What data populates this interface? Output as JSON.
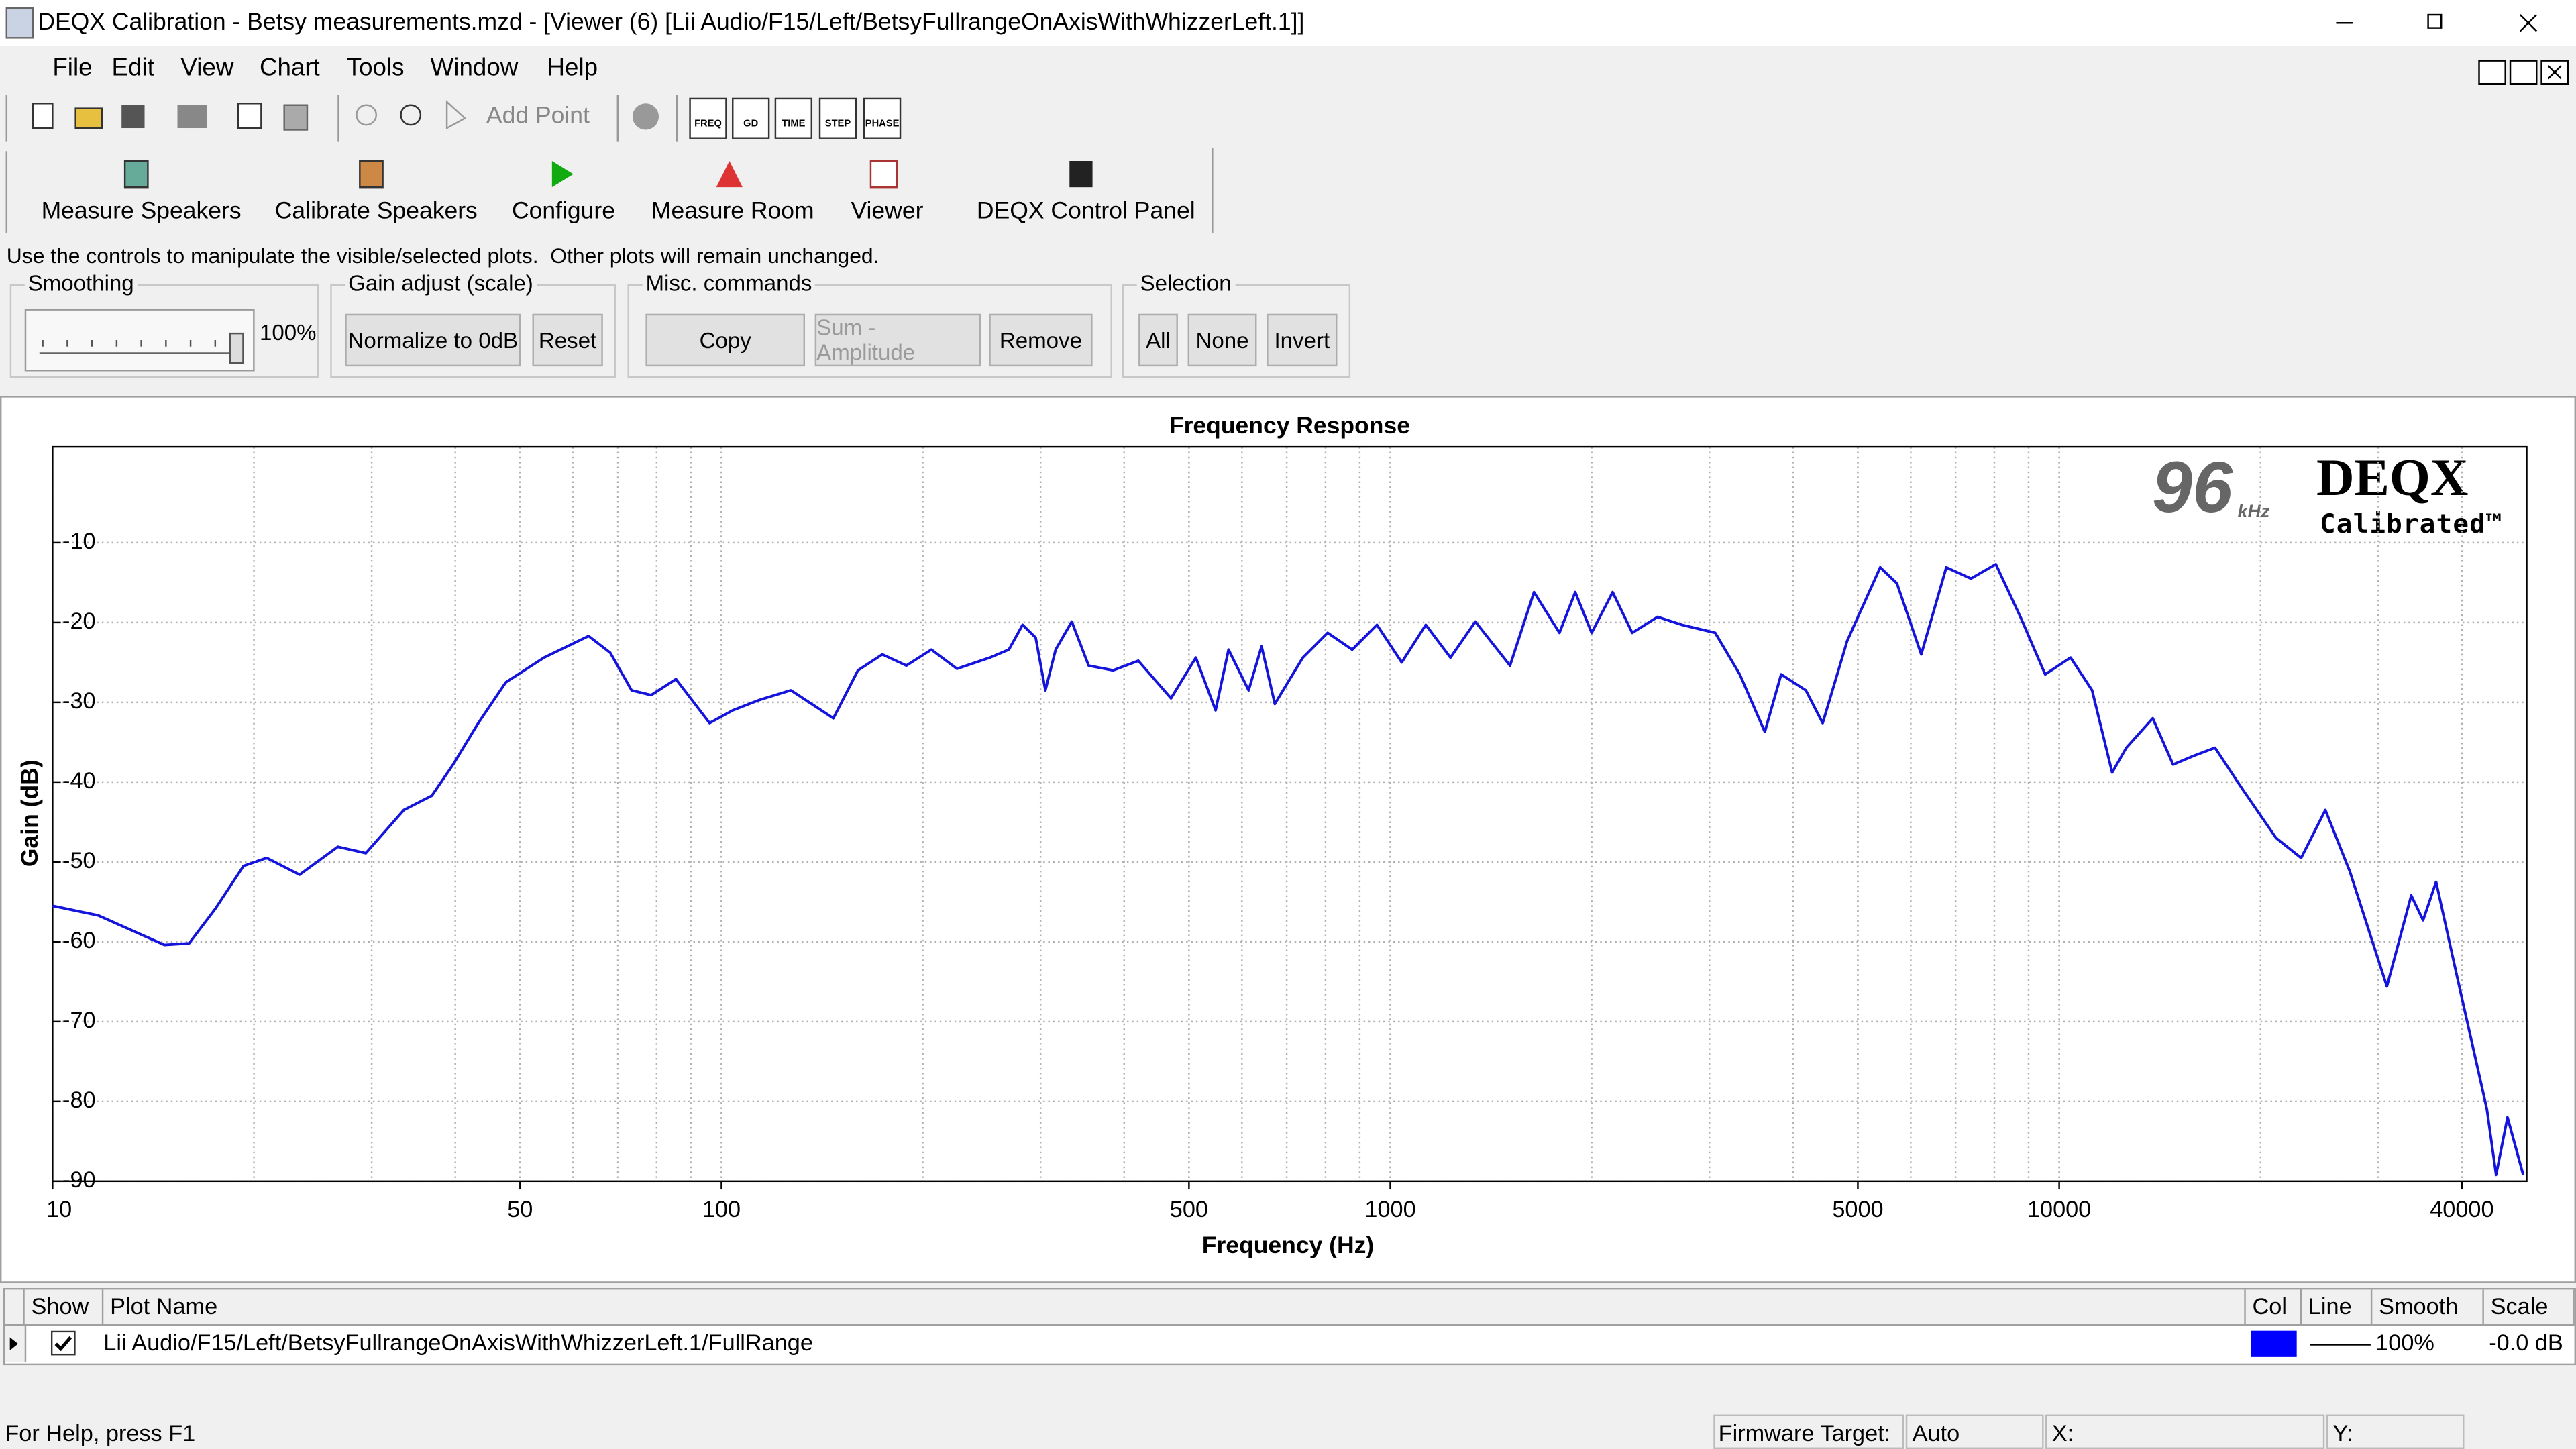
{
  "window": {
    "title": "DEQX Calibration - Betsy measurements.mzd - [Viewer (6) [Lii Audio/F15/Left/BetsyFullrangeOnAxisWithWhizzerLeft.1]]"
  },
  "menu": [
    "File",
    "Edit",
    "View",
    "Chart",
    "Tools",
    "Window",
    "Help"
  ],
  "toolbar": {
    "add_point": "Add Point",
    "view_buttons": [
      "FREQ",
      "GD",
      "TIME",
      "STEP",
      "PHASE"
    ]
  },
  "main_buttons": [
    "Measure Speakers",
    "Calibrate Speakers",
    "Configure",
    "Measure Room",
    "Viewer",
    "DEQX Control Panel"
  ],
  "hint": "Use the controls to manipulate the visible/selected plots.  Other plots will remain unchanged.",
  "controls": {
    "smoothing": {
      "label": "Smoothing",
      "value": "100%"
    },
    "gain": {
      "label": "Gain adjust (scale)",
      "buttons": [
        "Normalize to 0dB",
        "Reset"
      ]
    },
    "misc": {
      "label": "Misc. commands",
      "buttons": [
        "Copy",
        "Sum - Amplitude",
        "Remove"
      ]
    },
    "selection": {
      "label": "Selection",
      "buttons": [
        "All",
        "None",
        "Invert"
      ]
    }
  },
  "chart_data": {
    "type": "line",
    "title": "Frequency Response",
    "x_label": "Frequency (Hz)",
    "y_label": "Gain (dB)",
    "annotations": [
      "96",
      "kHz",
      "DEQX",
      "Calibrated™"
    ],
    "x": [
      10,
      11.7,
      14.7,
      16,
      17.5,
      19.3,
      20.9,
      23.4,
      26.7,
      29.4,
      33.5,
      36.9,
      39.7,
      43.3,
      47.6,
      54.3,
      63.3,
      68.2,
      73.4,
      78.5,
      85.5,
      96,
      104,
      114,
      127,
      147,
      160,
      174,
      189,
      206,
      225,
      252,
      269,
      282,
      295,
      305,
      316,
      334,
      354,
      385,
      420,
      470,
      512,
      548,
      573,
      614,
      642,
      672,
      740,
      806,
      877,
      955,
      1040,
      1130,
      1230,
      1340,
      1510,
      1640,
      1790,
      1890,
      2000,
      2150,
      2300,
      2510,
      2730,
      3060,
      3330,
      3630,
      3840,
      4180,
      4430,
      4820,
      5400,
      5720,
      6220,
      6780,
      7380,
      8040,
      8750,
      9530,
      10400,
      11200,
      12000,
      12600,
      13800,
      14800,
      15900,
      17100,
      18800,
      21100,
      23000,
      25000,
      27200,
      30900,
      33600,
      35000,
      36600,
      39400,
      43600,
      45000,
      46800,
      49400
    ],
    "series": [
      {
        "name": "Lii Audio/F15/Left/BetsyFullrangeOnAxisWithWhizzerLeft.1/FullRange",
        "color": "#1414dc",
        "values": [
          -55.5,
          -56.7,
          -60.4,
          -60.2,
          -55.9,
          -50.5,
          -49.5,
          -51.6,
          -48.1,
          -48.9,
          -43.5,
          -41.7,
          -37.8,
          -32.6,
          -27.5,
          -24.4,
          -21.7,
          -23.8,
          -28.5,
          -29.1,
          -27.1,
          -32.6,
          -31,
          -29.7,
          -28.5,
          -32,
          -26,
          -24,
          -25.4,
          -23.4,
          -25.8,
          -24.4,
          -23.4,
          -20.3,
          -21.9,
          -28.5,
          -23.4,
          -19.9,
          -25.4,
          -26,
          -24.8,
          -29.5,
          -24.4,
          -31,
          -23.4,
          -28.5,
          -23,
          -30.2,
          -24.4,
          -21.3,
          -23.4,
          -20.3,
          -25,
          -20.3,
          -24.4,
          -19.9,
          -25.4,
          -16.2,
          -21.3,
          -16.2,
          -21.3,
          -16.2,
          -21.3,
          -19.3,
          -20.3,
          -21.3,
          -26.5,
          -33.7,
          -26.5,
          -28.5,
          -32.6,
          -22.3,
          -13.1,
          -15.1,
          -24,
          -13.1,
          -14.5,
          -12.7,
          -19.3,
          -26.5,
          -24.4,
          -28.5,
          -38.8,
          -35.7,
          -32,
          -37.8,
          -36.7,
          -35.7,
          -40.9,
          -47,
          -49.5,
          -43.5,
          -51.2,
          -65.6,
          -54.2,
          -57.3,
          -52.5,
          -64.6,
          -81,
          -89.2,
          -82,
          -89.2
        ]
      }
    ],
    "xscale": "log",
    "xlim": [
      10,
      50000
    ],
    "ylim": [
      -90,
      2
    ],
    "xticks": [
      10,
      50,
      100,
      500,
      1000,
      5000,
      10000,
      40000
    ],
    "yticks": [
      -10,
      -20,
      -30,
      -40,
      -50,
      -60,
      -70,
      -80,
      -90
    ],
    "grid": true
  },
  "plot_table": {
    "columns": [
      "Show",
      "Plot Name",
      "Col",
      "Line",
      "Smooth",
      "Scale"
    ],
    "rows": [
      {
        "smooth": "100%",
        "scale": "-0.0 dB"
      }
    ]
  },
  "status_bar": {
    "help": "For Help, press F1",
    "firmware_label": "Firmware Target:",
    "firmware_value": "Auto",
    "x_label": "X:",
    "y_label": "Y:"
  }
}
